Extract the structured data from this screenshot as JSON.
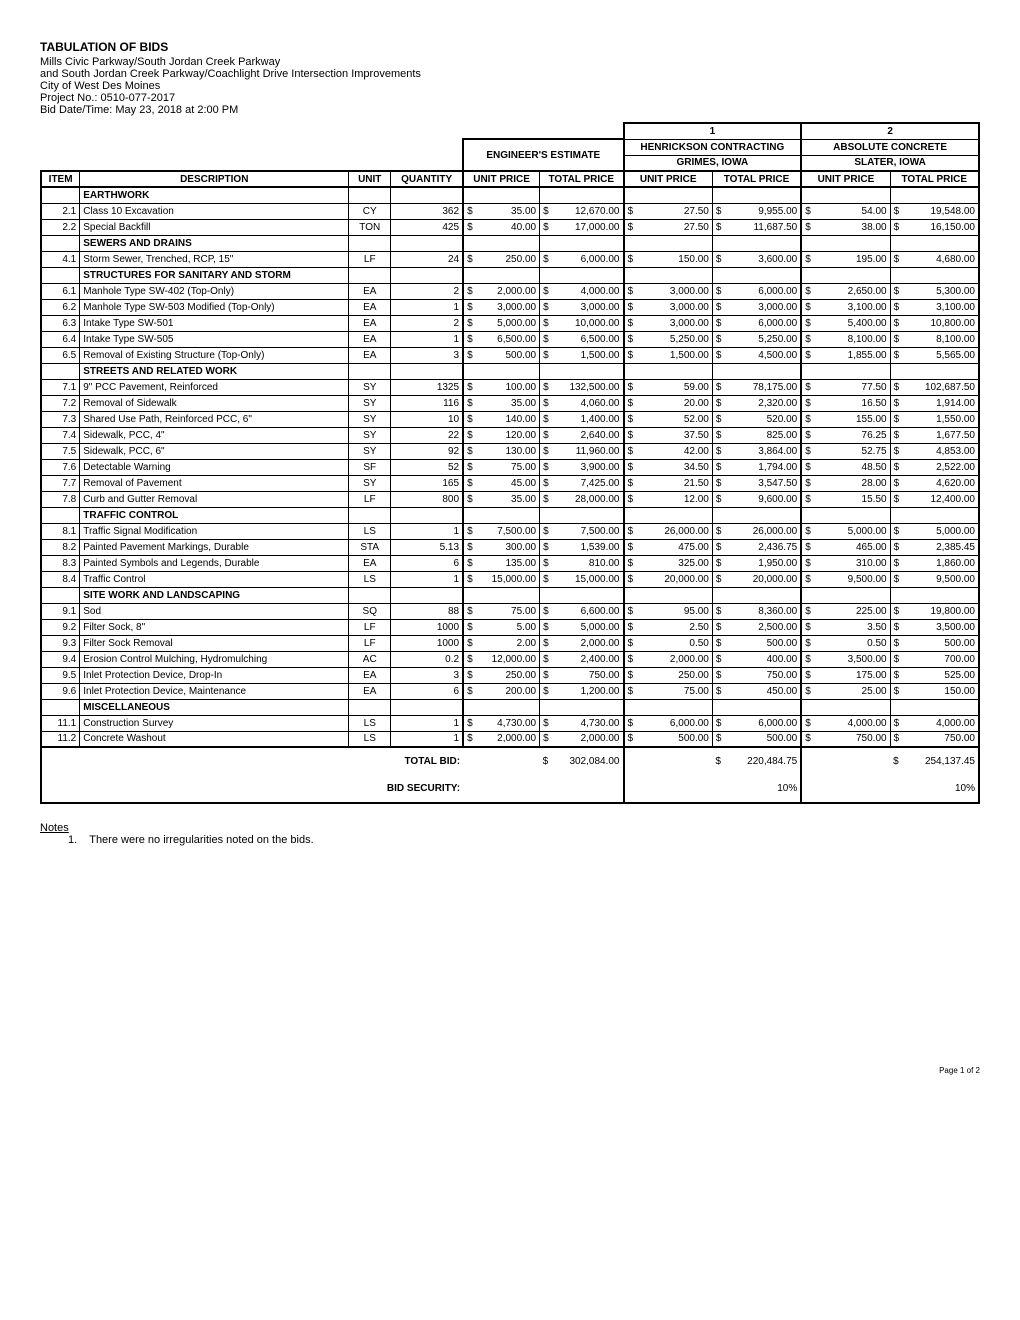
{
  "header": {
    "title": "TABULATION OF BIDS",
    "line1": "Mills Civic Parkway/South Jordan Creek Parkway",
    "line2": "and South Jordan Creek Parkway/Coachlight Drive Intersection Improvements",
    "line3": "City of West Des Moines",
    "project": "Project No.:  0510-077-2017",
    "bid_date": "Bid Date/Time: May 23, 2018 at 2:00 PM"
  },
  "columns": {
    "item": "ITEM",
    "description": "DESCRIPTION",
    "unit": "UNIT",
    "quantity": "QUANTITY",
    "unit_price": "UNIT PRICE",
    "total_price": "TOTAL PRICE",
    "engineer": "ENGINEER'S ESTIMATE"
  },
  "bidders": [
    {
      "num": "1",
      "name": "HENRICKSON CONTRACTING",
      "loc": "GRIMES, IOWA"
    },
    {
      "num": "2",
      "name": "ABSOLUTE CONCRETE",
      "loc": "SLATER, IOWA"
    }
  ],
  "sections": [
    {
      "name": "EARTHWORK",
      "rows": [
        {
          "item": "2.1",
          "desc": "Class 10 Excavation",
          "unit": "CY",
          "qty": "362",
          "e_up": "35.00",
          "e_tp": "12,670.00",
          "b1_up": "27.50",
          "b1_tp": "9,955.00",
          "b2_up": "54.00",
          "b2_tp": "19,548.00"
        },
        {
          "item": "2.2",
          "desc": "Special Backfill",
          "unit": "TON",
          "qty": "425",
          "e_up": "40.00",
          "e_tp": "17,000.00",
          "b1_up": "27.50",
          "b1_tp": "11,687.50",
          "b2_up": "38.00",
          "b2_tp": "16,150.00"
        }
      ]
    },
    {
      "name": "SEWERS AND DRAINS",
      "rows": [
        {
          "item": "4.1",
          "desc": "Storm Sewer, Trenched, RCP, 15\"",
          "unit": "LF",
          "qty": "24",
          "e_up": "250.00",
          "e_tp": "6,000.00",
          "b1_up": "150.00",
          "b1_tp": "3,600.00",
          "b2_up": "195.00",
          "b2_tp": "4,680.00"
        }
      ]
    },
    {
      "name": "STRUCTURES FOR SANITARY AND STORM",
      "rows": [
        {
          "item": "6.1",
          "desc": "Manhole Type SW-402 (Top-Only)",
          "unit": "EA",
          "qty": "2",
          "e_up": "2,000.00",
          "e_tp": "4,000.00",
          "b1_up": "3,000.00",
          "b1_tp": "6,000.00",
          "b2_up": "2,650.00",
          "b2_tp": "5,300.00"
        },
        {
          "item": "6.2",
          "desc": "Manhole Type SW-503 Modified (Top-Only)",
          "unit": "EA",
          "qty": "1",
          "e_up": "3,000.00",
          "e_tp": "3,000.00",
          "b1_up": "3,000.00",
          "b1_tp": "3,000.00",
          "b2_up": "3,100.00",
          "b2_tp": "3,100.00"
        },
        {
          "item": "6.3",
          "desc": "Intake Type SW-501",
          "unit": "EA",
          "qty": "2",
          "e_up": "5,000.00",
          "e_tp": "10,000.00",
          "b1_up": "3,000.00",
          "b1_tp": "6,000.00",
          "b2_up": "5,400.00",
          "b2_tp": "10,800.00"
        },
        {
          "item": "6.4",
          "desc": "Intake Type SW-505",
          "unit": "EA",
          "qty": "1",
          "e_up": "6,500.00",
          "e_tp": "6,500.00",
          "b1_up": "5,250.00",
          "b1_tp": "5,250.00",
          "b2_up": "8,100.00",
          "b2_tp": "8,100.00"
        },
        {
          "item": "6.5",
          "desc": "Removal of Existing Structure (Top-Only)",
          "unit": "EA",
          "qty": "3",
          "e_up": "500.00",
          "e_tp": "1,500.00",
          "b1_up": "1,500.00",
          "b1_tp": "4,500.00",
          "b2_up": "1,855.00",
          "b2_tp": "5,565.00"
        }
      ]
    },
    {
      "name": "STREETS AND RELATED WORK",
      "rows": [
        {
          "item": "7.1",
          "desc": "9\" PCC Pavement, Reinforced",
          "unit": "SY",
          "qty": "1325",
          "e_up": "100.00",
          "e_tp": "132,500.00",
          "b1_up": "59.00",
          "b1_tp": "78,175.00",
          "b2_up": "77.50",
          "b2_tp": "102,687.50"
        },
        {
          "item": "7.2",
          "desc": "Removal of Sidewalk",
          "unit": "SY",
          "qty": "116",
          "e_up": "35.00",
          "e_tp": "4,060.00",
          "b1_up": "20.00",
          "b1_tp": "2,320.00",
          "b2_up": "16.50",
          "b2_tp": "1,914.00"
        },
        {
          "item": "7.3",
          "desc": "Shared Use Path, Reinforced PCC, 6\"",
          "unit": "SY",
          "qty": "10",
          "e_up": "140.00",
          "e_tp": "1,400.00",
          "b1_up": "52.00",
          "b1_tp": "520.00",
          "b2_up": "155.00",
          "b2_tp": "1,550.00"
        },
        {
          "item": "7.4",
          "desc": "Sidewalk, PCC, 4\"",
          "unit": "SY",
          "qty": "22",
          "e_up": "120.00",
          "e_tp": "2,640.00",
          "b1_up": "37.50",
          "b1_tp": "825.00",
          "b2_up": "76.25",
          "b2_tp": "1,677.50"
        },
        {
          "item": "7.5",
          "desc": "Sidewalk, PCC, 6\"",
          "unit": "SY",
          "qty": "92",
          "e_up": "130.00",
          "e_tp": "11,960.00",
          "b1_up": "42.00",
          "b1_tp": "3,864.00",
          "b2_up": "52.75",
          "b2_tp": "4,853.00"
        },
        {
          "item": "7.6",
          "desc": "Detectable Warning",
          "unit": "SF",
          "qty": "52",
          "e_up": "75.00",
          "e_tp": "3,900.00",
          "b1_up": "34.50",
          "b1_tp": "1,794.00",
          "b2_up": "48.50",
          "b2_tp": "2,522.00"
        },
        {
          "item": "7.7",
          "desc": "Removal of Pavement",
          "unit": "SY",
          "qty": "165",
          "e_up": "45.00",
          "e_tp": "7,425.00",
          "b1_up": "21.50",
          "b1_tp": "3,547.50",
          "b2_up": "28.00",
          "b2_tp": "4,620.00"
        },
        {
          "item": "7.8",
          "desc": "Curb and Gutter Removal",
          "unit": "LF",
          "qty": "800",
          "e_up": "35.00",
          "e_tp": "28,000.00",
          "b1_up": "12.00",
          "b1_tp": "9,600.00",
          "b2_up": "15.50",
          "b2_tp": "12,400.00"
        }
      ]
    },
    {
      "name": "TRAFFIC CONTROL",
      "rows": [
        {
          "item": "8.1",
          "desc": "Traffic Signal Modification",
          "unit": "LS",
          "qty": "1",
          "e_up": "7,500.00",
          "e_tp": "7,500.00",
          "b1_up": "26,000.00",
          "b1_tp": "26,000.00",
          "b2_up": "5,000.00",
          "b2_tp": "5,000.00"
        },
        {
          "item": "8.2",
          "desc": "Painted Pavement Markings, Durable",
          "unit": "STA",
          "qty": "5.13",
          "e_up": "300.00",
          "e_tp": "1,539.00",
          "b1_up": "475.00",
          "b1_tp": "2,436.75",
          "b2_up": "465.00",
          "b2_tp": "2,385.45"
        },
        {
          "item": "8.3",
          "desc": "Painted Symbols and Legends, Durable",
          "unit": "EA",
          "qty": "6",
          "e_up": "135.00",
          "e_tp": "810.00",
          "b1_up": "325.00",
          "b1_tp": "1,950.00",
          "b2_up": "310.00",
          "b2_tp": "1,860.00"
        },
        {
          "item": "8.4",
          "desc": "Traffic Control",
          "unit": "LS",
          "qty": "1",
          "e_up": "15,000.00",
          "e_tp": "15,000.00",
          "b1_up": "20,000.00",
          "b1_tp": "20,000.00",
          "b2_up": "9,500.00",
          "b2_tp": "9,500.00"
        }
      ]
    },
    {
      "name": "SITE WORK AND LANDSCAPING",
      "rows": [
        {
          "item": "9.1",
          "desc": "Sod",
          "unit": "SQ",
          "qty": "88",
          "e_up": "75.00",
          "e_tp": "6,600.00",
          "b1_up": "95.00",
          "b1_tp": "8,360.00",
          "b2_up": "225.00",
          "b2_tp": "19,800.00"
        },
        {
          "item": "9.2",
          "desc": "Filter Sock, 8\"",
          "unit": "LF",
          "qty": "1000",
          "e_up": "5.00",
          "e_tp": "5,000.00",
          "b1_up": "2.50",
          "b1_tp": "2,500.00",
          "b2_up": "3.50",
          "b2_tp": "3,500.00"
        },
        {
          "item": "9.3",
          "desc": "Filter Sock Removal",
          "unit": "LF",
          "qty": "1000",
          "e_up": "2.00",
          "e_tp": "2,000.00",
          "b1_up": "0.50",
          "b1_tp": "500.00",
          "b2_up": "0.50",
          "b2_tp": "500.00"
        },
        {
          "item": "9.4",
          "desc": "Erosion Control Mulching, Hydromulching",
          "unit": "AC",
          "qty": "0.2",
          "e_up": "12,000.00",
          "e_tp": "2,400.00",
          "b1_up": "2,000.00",
          "b1_tp": "400.00",
          "b2_up": "3,500.00",
          "b2_tp": "700.00"
        },
        {
          "item": "9.5",
          "desc": "Inlet Protection Device, Drop-In",
          "unit": "EA",
          "qty": "3",
          "e_up": "250.00",
          "e_tp": "750.00",
          "b1_up": "250.00",
          "b1_tp": "750.00",
          "b2_up": "175.00",
          "b2_tp": "525.00"
        },
        {
          "item": "9.6",
          "desc": "Inlet Protection Device, Maintenance",
          "unit": "EA",
          "qty": "6",
          "e_up": "200.00",
          "e_tp": "1,200.00",
          "b1_up": "75.00",
          "b1_tp": "450.00",
          "b2_up": "25.00",
          "b2_tp": "150.00"
        }
      ]
    },
    {
      "name": "MISCELLANEOUS",
      "rows": [
        {
          "item": "11.1",
          "desc": "Construction Survey",
          "unit": "LS",
          "qty": "1",
          "e_up": "4,730.00",
          "e_tp": "4,730.00",
          "b1_up": "6,000.00",
          "b1_tp": "6,000.00",
          "b2_up": "4,000.00",
          "b2_tp": "4,000.00"
        },
        {
          "item": "11.2",
          "desc": "Concrete Washout",
          "unit": "LS",
          "qty": "1",
          "e_up": "2,000.00",
          "e_tp": "2,000.00",
          "b1_up": "500.00",
          "b1_tp": "500.00",
          "b2_up": "750.00",
          "b2_tp": "750.00"
        }
      ]
    }
  ],
  "totals": {
    "total_bid_label": "TOTAL BID:",
    "bid_security_label": "BID SECURITY:",
    "engineer_total": "302,084.00",
    "b1_total": "220,484.75",
    "b2_total": "254,137.45",
    "b1_sec": "10%",
    "b2_sec": "10%"
  },
  "notes": {
    "heading": "Notes",
    "item1_num": "1.",
    "item1": "There were no irregularities noted on the bids."
  },
  "footer": {
    "page": "Page 1 of 2"
  },
  "style": {
    "border_color": "#000000",
    "background_color": "#ffffff",
    "text_color": "#000000",
    "body_fontsize": 10,
    "title_fontsize": 12
  }
}
